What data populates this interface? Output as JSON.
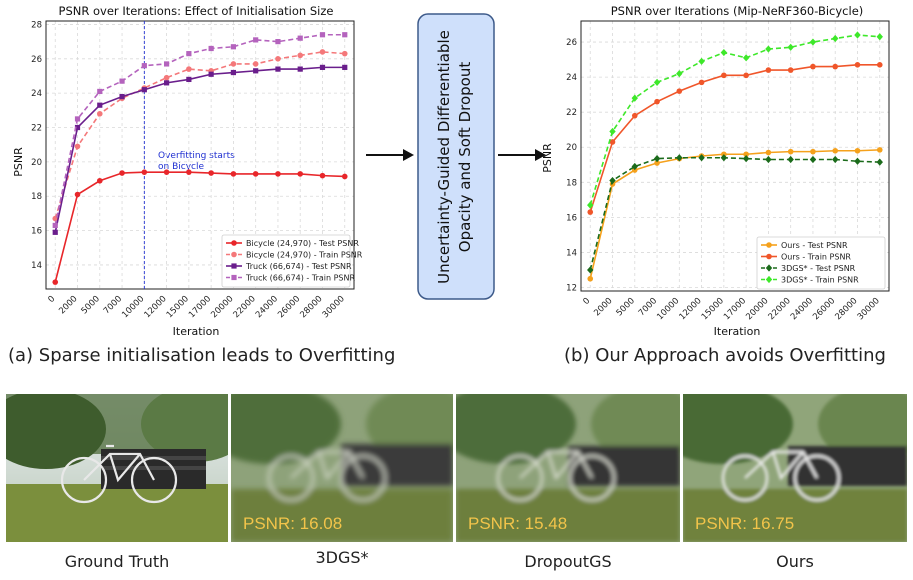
{
  "chart_data": [
    {
      "type": "line",
      "title": "PSNR over Iterations: Effect of Initialisation Size",
      "xlabel": "Iteration",
      "ylabel": "PSNR",
      "x_ticks": [
        "0",
        "2000",
        "5000",
        "7000",
        "10000",
        "12000",
        "15000",
        "17000",
        "20000",
        "22000",
        "24000",
        "26000",
        "28000",
        "30000"
      ],
      "yticks": [
        14,
        16,
        18,
        20,
        22,
        24,
        26,
        28
      ],
      "ylim": [
        12.6,
        28.2
      ],
      "grid": true,
      "legend": "bottom-right",
      "annotation": {
        "line1": "Overfitting starts",
        "line2": "on Bicycle",
        "at_index": 4
      },
      "series": [
        {
          "name": "Bicycle (24,970) - Test PSNR",
          "color": "#e8262a",
          "dashed": false,
          "marker": "circle",
          "values": [
            13.0,
            18.1,
            18.9,
            19.35,
            19.4,
            19.4,
            19.4,
            19.35,
            19.3,
            19.3,
            19.3,
            19.3,
            19.2,
            19.15
          ]
        },
        {
          "name": "Bicycle (24,970) - Train PSNR",
          "color": "#f4787a",
          "dashed": true,
          "marker": "circle",
          "values": [
            16.7,
            20.9,
            22.8,
            23.7,
            24.3,
            24.9,
            25.4,
            25.3,
            25.7,
            25.7,
            26.0,
            26.2,
            26.4,
            26.3
          ]
        },
        {
          "name": "Truck (66,674) - Test PSNR",
          "color": "#6a1e8c",
          "dashed": false,
          "marker": "square",
          "values": [
            15.9,
            22.0,
            23.3,
            23.8,
            24.2,
            24.6,
            24.8,
            25.1,
            25.2,
            25.3,
            25.4,
            25.4,
            25.5,
            25.5
          ]
        },
        {
          "name": "Truck (66,674) - Train PSNR",
          "color": "#b463bd",
          "dashed": true,
          "marker": "square",
          "values": [
            16.3,
            22.5,
            24.1,
            24.7,
            25.6,
            25.7,
            26.3,
            26.6,
            26.7,
            27.1,
            27.0,
            27.2,
            27.4,
            27.4
          ]
        }
      ]
    },
    {
      "type": "line",
      "title": "PSNR over Iterations (Mip-NeRF360-Bicycle)",
      "xlabel": "Iteration",
      "ylabel": "PSNR",
      "x_ticks": [
        "0",
        "2000",
        "5000",
        "7000",
        "10000",
        "12000",
        "15000",
        "17000",
        "20000",
        "22000",
        "24000",
        "26000",
        "28000",
        "30000"
      ],
      "yticks": [
        12,
        14,
        16,
        18,
        20,
        22,
        24,
        26
      ],
      "ylim": [
        11.8,
        27.2
      ],
      "grid": true,
      "legend": "bottom-right",
      "series": [
        {
          "name": "Ours - Test PSNR",
          "color": "#f5a11c",
          "dashed": false,
          "marker": "circle",
          "values": [
            12.5,
            17.9,
            18.7,
            19.1,
            19.35,
            19.5,
            19.6,
            19.6,
            19.7,
            19.75,
            19.75,
            19.8,
            19.8,
            19.85
          ]
        },
        {
          "name": "Ours - Train PSNR",
          "color": "#f0562a",
          "dashed": false,
          "marker": "circle",
          "values": [
            16.3,
            20.3,
            21.8,
            22.6,
            23.2,
            23.7,
            24.1,
            24.1,
            24.4,
            24.4,
            24.6,
            24.6,
            24.7,
            24.7
          ]
        },
        {
          "name": "3DGS* - Test PSNR",
          "color": "#1b6b1b",
          "dashed": true,
          "marker": "diamond",
          "values": [
            13.0,
            18.1,
            18.9,
            19.35,
            19.4,
            19.4,
            19.4,
            19.35,
            19.3,
            19.3,
            19.3,
            19.3,
            19.2,
            19.15
          ]
        },
        {
          "name": "3DGS* - Train PSNR",
          "color": "#3ee82a",
          "dashed": true,
          "marker": "diamond",
          "values": [
            16.7,
            20.9,
            22.8,
            23.7,
            24.2,
            24.9,
            25.4,
            25.1,
            25.6,
            25.7,
            26.0,
            26.2,
            26.4,
            26.3
          ]
        }
      ]
    }
  ],
  "middle_box": {
    "line1": "Uncertainty-Guided Differentiable",
    "line2": "Opacity and Soft Dropout"
  },
  "captions": {
    "left": "(a) Sparse initialisation leads to Overfitting",
    "right": "(b) Our Approach avoids Overfitting"
  },
  "photos": [
    {
      "label": "Ground Truth",
      "psnr": ""
    },
    {
      "label": "3DGS*",
      "psnr": "PSNR: 16.08"
    },
    {
      "label": "DropoutGS",
      "psnr": "PSNR: 15.48"
    },
    {
      "label": "Ours",
      "psnr": "PSNR: 16.75"
    }
  ],
  "colors": {
    "box_fill": "#cfe0fb",
    "box_stroke": "#3d5a8a",
    "psnr_text": "#f2c44a",
    "annotation": "#1f2fd1"
  }
}
